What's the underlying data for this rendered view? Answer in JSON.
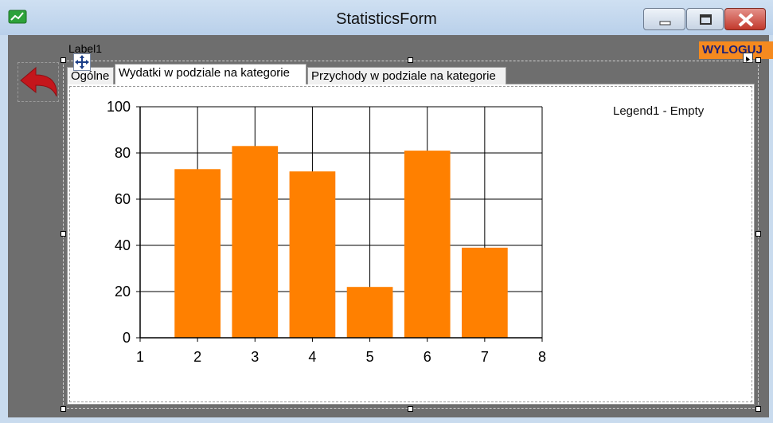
{
  "window": {
    "title": "StatisticsForm",
    "icon": "chart-app-icon"
  },
  "form": {
    "label1": "Label1",
    "logout_label": "WYLOGUJ",
    "tabs": [
      {
        "label": "Ogólne",
        "selected": false
      },
      {
        "label": "Wydatki w podziale na kategorie",
        "selected": true
      },
      {
        "label": "Przychody w podziale na kategorie",
        "selected": false
      }
    ]
  },
  "colors": {
    "bar": "#ff8000",
    "logout_bg": "#f58a1f",
    "logout_text": "#1b1f78",
    "back_arrow": "#c4161c"
  },
  "chart_data": {
    "type": "bar",
    "x": [
      2,
      3,
      4,
      5,
      6,
      7
    ],
    "values": [
      73,
      83,
      72,
      22,
      81,
      39
    ],
    "xlim": [
      1,
      8
    ],
    "ylim": [
      0,
      100
    ],
    "xticks": [
      "1",
      "2",
      "3",
      "4",
      "5",
      "6",
      "7",
      "8"
    ],
    "yticks": [
      "0",
      "20",
      "40",
      "60",
      "80",
      "100"
    ],
    "grid": true,
    "legend_text": "Legend1 - Empty",
    "legend_position": "top-right"
  }
}
